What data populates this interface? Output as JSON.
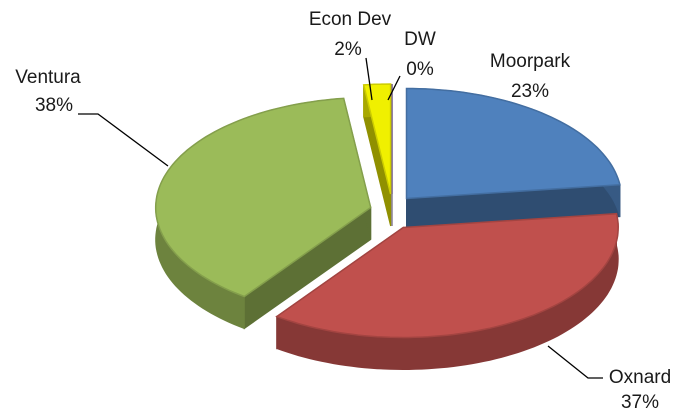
{
  "chart_data": {
    "type": "pie",
    "categories": [
      "Moorpark",
      "Oxnard",
      "Ventura",
      "Econ Dev",
      "DW"
    ],
    "values": [
      23,
      37,
      38,
      2,
      0
    ],
    "value_labels": [
      "23%",
      "37%",
      "38%",
      "2%",
      "0%"
    ],
    "colors": [
      "#4f81bd",
      "#c0504d",
      "#9bbb59",
      "#f0f000",
      "#8064a2"
    ]
  }
}
